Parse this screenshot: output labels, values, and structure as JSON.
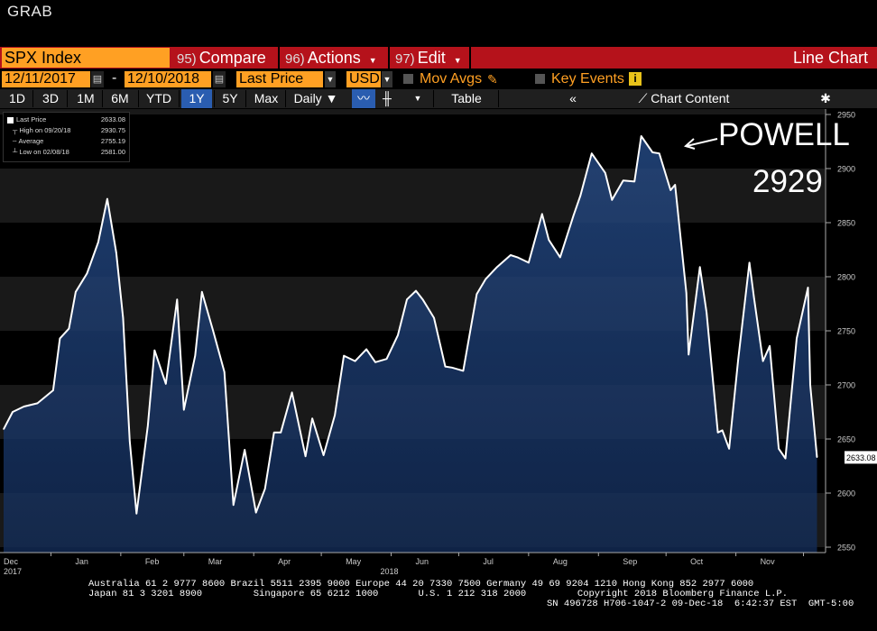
{
  "header": {
    "grab_label": "GRAB"
  },
  "menu": {
    "ticker": "SPX Index",
    "compare_num": "95)",
    "compare_label": "Compare",
    "actions_num": "96)",
    "actions_label": "Actions",
    "edit_num": "97)",
    "edit_label": "Edit",
    "title": "Line Chart"
  },
  "settings": {
    "start_date": "12/11/2017",
    "end_date": "12/10/2018",
    "field": "Last Price",
    "currency": "USD",
    "mov_avgs": "Mov Avgs",
    "key_events": "Key Events"
  },
  "toolbar": {
    "periods": [
      "1D",
      "3D",
      "1M",
      "6M",
      "YTD",
      "1Y",
      "5Y",
      "Max"
    ],
    "active_period": "1Y",
    "frequency": "Daily",
    "table_label": "Table",
    "chart_content_label": "Chart Content"
  },
  "legend": {
    "rows": [
      {
        "label": "Last Price",
        "value": "2633.08"
      },
      {
        "label": "High on 09/20/18",
        "value": "2930.75"
      },
      {
        "label": "Average",
        "value": "2755.19"
      },
      {
        "label": "Low on 02/08/18",
        "value": "2581.00"
      }
    ]
  },
  "annotation": {
    "line1": "POWELL",
    "line2": "2929"
  },
  "last_value_label": "2633.08",
  "colors": {
    "orange": "#ffa023",
    "red_bar": "#b5121b",
    "area_fill": "#152a4d",
    "line": "#ffffff",
    "active_btn": "#2a5db0"
  },
  "chart_data": {
    "type": "area",
    "ylim": [
      2545,
      2955
    ],
    "y_ticks": [
      2550,
      2600,
      2650,
      2700,
      2750,
      2800,
      2850,
      2900,
      2950
    ],
    "x_month_labels": [
      "Dec",
      "Jan",
      "Feb",
      "Mar",
      "Apr",
      "May",
      "Jun",
      "Jul",
      "Aug",
      "Sep",
      "Oct",
      "Nov"
    ],
    "x_year_labels": [
      "2017",
      "2018"
    ],
    "x": [
      "2017-12-11",
      "2017-12-15",
      "2017-12-20",
      "2017-12-26",
      "2018-01-02",
      "2018-01-05",
      "2018-01-09",
      "2018-01-12",
      "2018-01-17",
      "2018-01-22",
      "2018-01-26",
      "2018-01-30",
      "2018-02-02",
      "2018-02-05",
      "2018-02-08",
      "2018-02-13",
      "2018-02-16",
      "2018-02-21",
      "2018-02-26",
      "2018-03-01",
      "2018-03-06",
      "2018-03-09",
      "2018-03-14",
      "2018-03-19",
      "2018-03-23",
      "2018-03-28",
      "2018-04-02",
      "2018-04-06",
      "2018-04-10",
      "2018-04-13",
      "2018-04-18",
      "2018-04-24",
      "2018-04-27",
      "2018-05-02",
      "2018-05-07",
      "2018-05-11",
      "2018-05-16",
      "2018-05-21",
      "2018-05-25",
      "2018-05-30",
      "2018-06-04",
      "2018-06-08",
      "2018-06-12",
      "2018-06-15",
      "2018-06-20",
      "2018-06-25",
      "2018-06-28",
      "2018-07-03",
      "2018-07-09",
      "2018-07-13",
      "2018-07-18",
      "2018-07-24",
      "2018-07-27",
      "2018-08-01",
      "2018-08-07",
      "2018-08-10",
      "2018-08-15",
      "2018-08-21",
      "2018-08-24",
      "2018-08-29",
      "2018-09-04",
      "2018-09-07",
      "2018-09-12",
      "2018-09-17",
      "2018-09-20",
      "2018-09-25",
      "2018-09-28",
      "2018-10-03",
      "2018-10-05",
      "2018-10-10",
      "2018-10-11",
      "2018-10-16",
      "2018-10-19",
      "2018-10-24",
      "2018-10-26",
      "2018-10-29",
      "2018-11-02",
      "2018-11-07",
      "2018-11-09",
      "2018-11-13",
      "2018-11-16",
      "2018-11-20",
      "2018-11-23",
      "2018-11-28",
      "2018-12-03",
      "2018-12-04",
      "2018-12-07"
    ],
    "series": [
      {
        "values": [
          2659,
          2675,
          2680,
          2683,
          2695,
          2743,
          2752,
          2786,
          2803,
          2832,
          2872,
          2822,
          2762,
          2648,
          2581,
          2662,
          2732,
          2701,
          2779,
          2677,
          2727,
          2786,
          2750,
          2712,
          2589,
          2640,
          2582,
          2604,
          2656,
          2656,
          2693,
          2634,
          2669,
          2635,
          2672,
          2727,
          2722,
          2733,
          2721,
          2724,
          2746,
          2779,
          2787,
          2779,
          2762,
          2717,
          2716,
          2713,
          2784,
          2798,
          2809,
          2820,
          2818,
          2813,
          2858,
          2834,
          2818,
          2857,
          2875,
          2914,
          2896,
          2871,
          2889,
          2888,
          2930,
          2915,
          2914,
          2880,
          2885,
          2785,
          2728,
          2809,
          2767,
          2656,
          2658,
          2641,
          2723,
          2813,
          2781,
          2722,
          2736,
          2641,
          2632,
          2743,
          2790,
          2700,
          2633
        ]
      }
    ]
  },
  "footer": {
    "line1": "Australia 61 2 9777 8600 Brazil 5511 2395 9000 Europe 44 20 7330 7500 Germany 49 69 9204 1210 Hong Kong 852 2977 6000",
    "line2": "Japan 81 3 3201 8900         Singapore 65 6212 1000       U.S. 1 212 318 2000         Copyright 2018 Bloomberg Finance L.P.",
    "line3": "SN 496728 H706-1047-2 09-Dec-18  6:42:37 EST  GMT-5:00"
  }
}
